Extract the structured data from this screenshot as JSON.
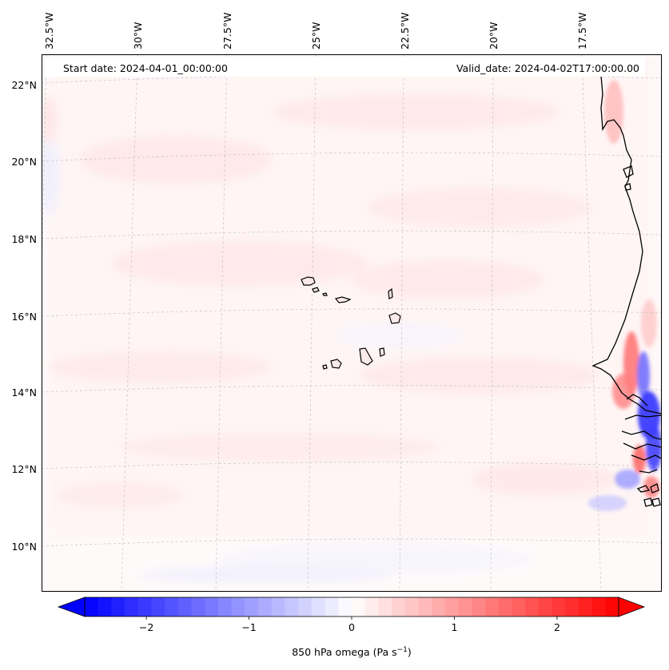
{
  "map": {
    "start_label": "Start date: 2024-04-01_00:00:00",
    "valid_label": "Valid_date: 2024-04-02T17:00:00.00",
    "lon_labels": [
      "32.5°W",
      "30°W",
      "27.5°W",
      "25°W",
      "22.5°W",
      "20°W",
      "17.5°W"
    ],
    "lat_labels": [
      "22°N",
      "20°N",
      "18°N",
      "16°N",
      "14°N",
      "12°N",
      "10°N"
    ],
    "islands": [
      "Santo Antão",
      "São Vicente",
      "Santa Luzia",
      "São Nicolau",
      "Sal",
      "Boa Vista",
      "Maio",
      "Santiago",
      "Fogo",
      "Brava"
    ]
  },
  "colorbar": {
    "label": "850 hPa omega (Pa s",
    "label_exp": "−1",
    "label_close": ")",
    "ticks": [
      "−2",
      "−1",
      "0",
      "1",
      "2"
    ],
    "tick_values": [
      -2,
      -1,
      0,
      1,
      2
    ],
    "range": [
      -2.6,
      2.6
    ],
    "colors": {
      "negative": "#0000ff",
      "zero": "#ffffff",
      "positive": "#ff0000"
    }
  }
}
